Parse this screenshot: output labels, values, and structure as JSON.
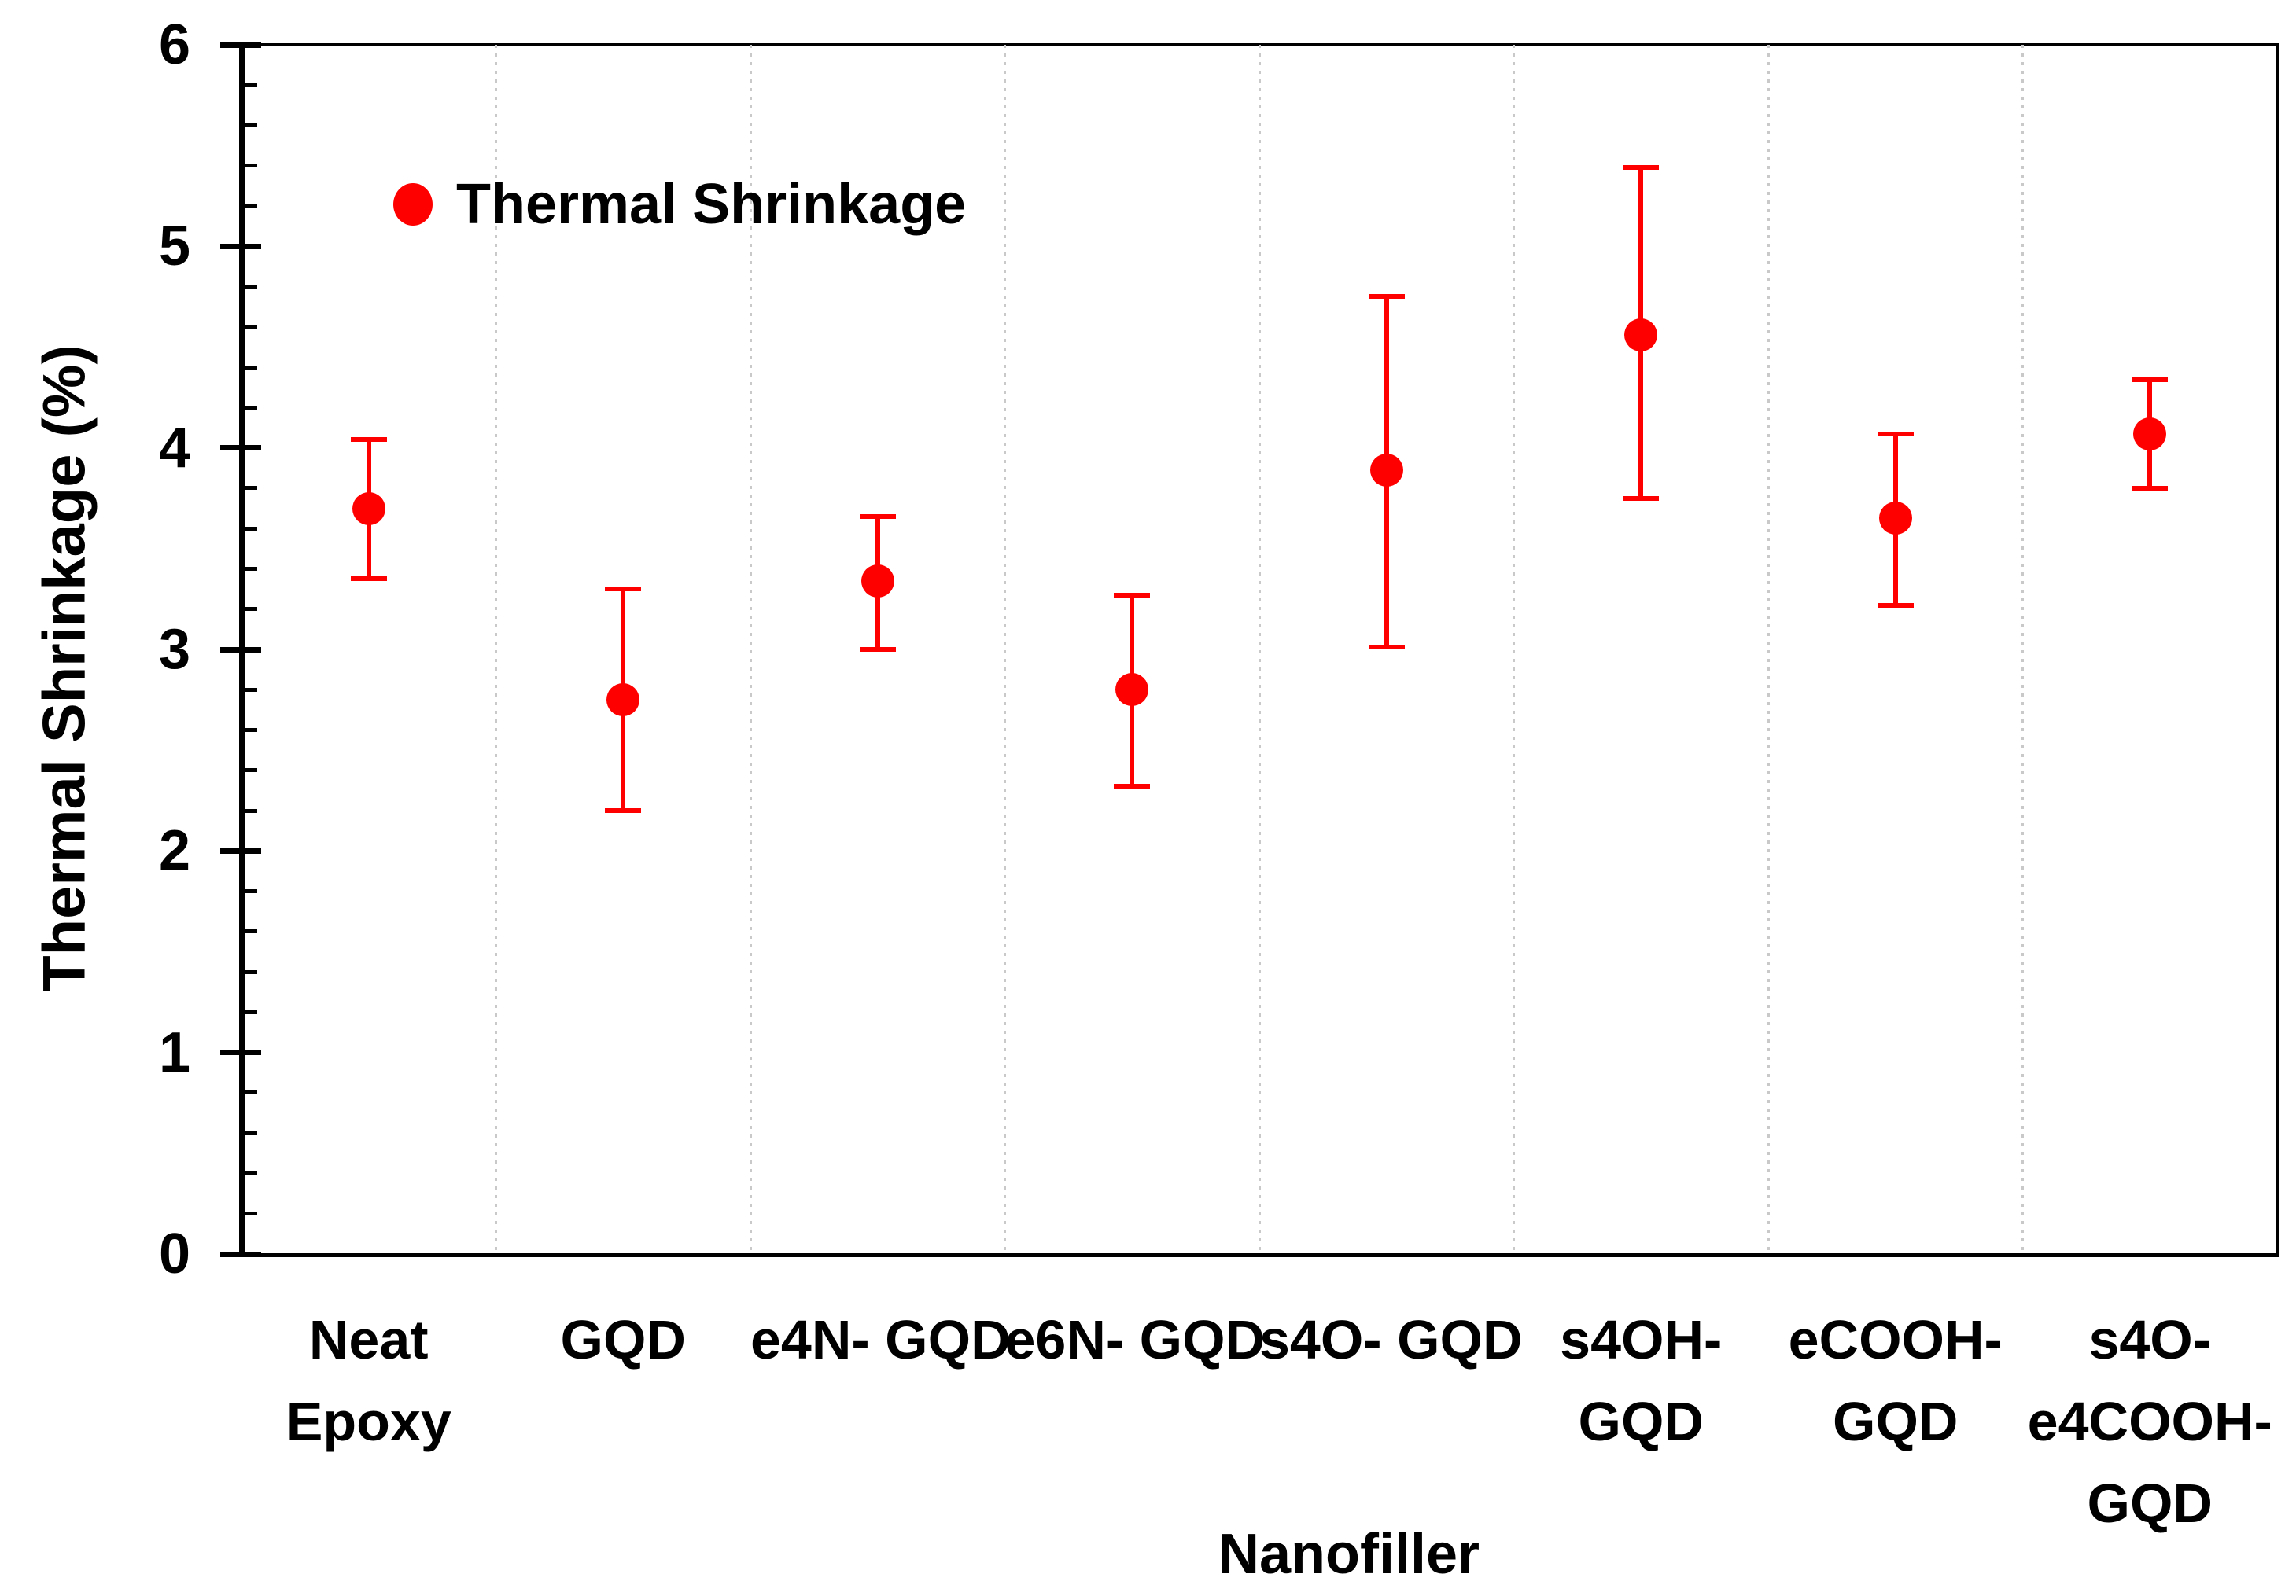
{
  "chart_data": {
    "type": "scatter",
    "title": "",
    "xlabel": "Nanofiller",
    "ylabel": "Thermal Shrinkage (%)",
    "ylim": [
      0,
      6
    ],
    "y_major_ticks": [
      "0",
      "1",
      "2",
      "3",
      "4",
      "5",
      "6"
    ],
    "y_minor_step": 0.2,
    "grid": "vertical dotted lines at category boundaries",
    "legend": {
      "label": "Thermal Shrinkage",
      "position": "top-left-inside"
    },
    "series": [
      {
        "name": "Thermal Shrinkage",
        "marker": "circle",
        "color": "#FF0000",
        "points": [
          {
            "category": "Neat Epoxy",
            "label_lines": [
              "Neat",
              "Epoxy"
            ],
            "value": 3.7,
            "err_low": 3.35,
            "err_high": 4.04
          },
          {
            "category": "GQD",
            "label_lines": [
              "GQD"
            ],
            "value": 2.75,
            "err_low": 2.2,
            "err_high": 3.3
          },
          {
            "category": "e4N- GQD",
            "label_lines": [
              "e4N- GQD"
            ],
            "value": 3.34,
            "err_low": 3.0,
            "err_high": 3.66
          },
          {
            "category": "e6N- GQD",
            "label_lines": [
              "e6N- GQD"
            ],
            "value": 2.8,
            "err_low": 2.32,
            "err_high": 3.27
          },
          {
            "category": "s4O- GQD",
            "label_lines": [
              "s4O- GQD"
            ],
            "value": 3.89,
            "err_low": 3.01,
            "err_high": 4.75
          },
          {
            "category": "s4OH- GQD",
            "label_lines": [
              "s4OH-",
              "GQD"
            ],
            "value": 4.56,
            "err_low": 3.75,
            "err_high": 5.39
          },
          {
            "category": "eCOOH- GQD",
            "label_lines": [
              "eCOOH-",
              "GQD"
            ],
            "value": 3.65,
            "err_low": 3.22,
            "err_high": 4.07
          },
          {
            "category": "s4O-e4COOH- GQD",
            "label_lines": [
              "s4O-",
              "e4COOH-",
              "GQD"
            ],
            "value": 4.07,
            "err_low": 3.8,
            "err_high": 4.34
          }
        ]
      }
    ],
    "colors": {
      "marker": "#FF0000",
      "axis": "#000000",
      "grid": "#C9C9C9",
      "text": "#000000",
      "background": "#FFFFFF"
    }
  }
}
